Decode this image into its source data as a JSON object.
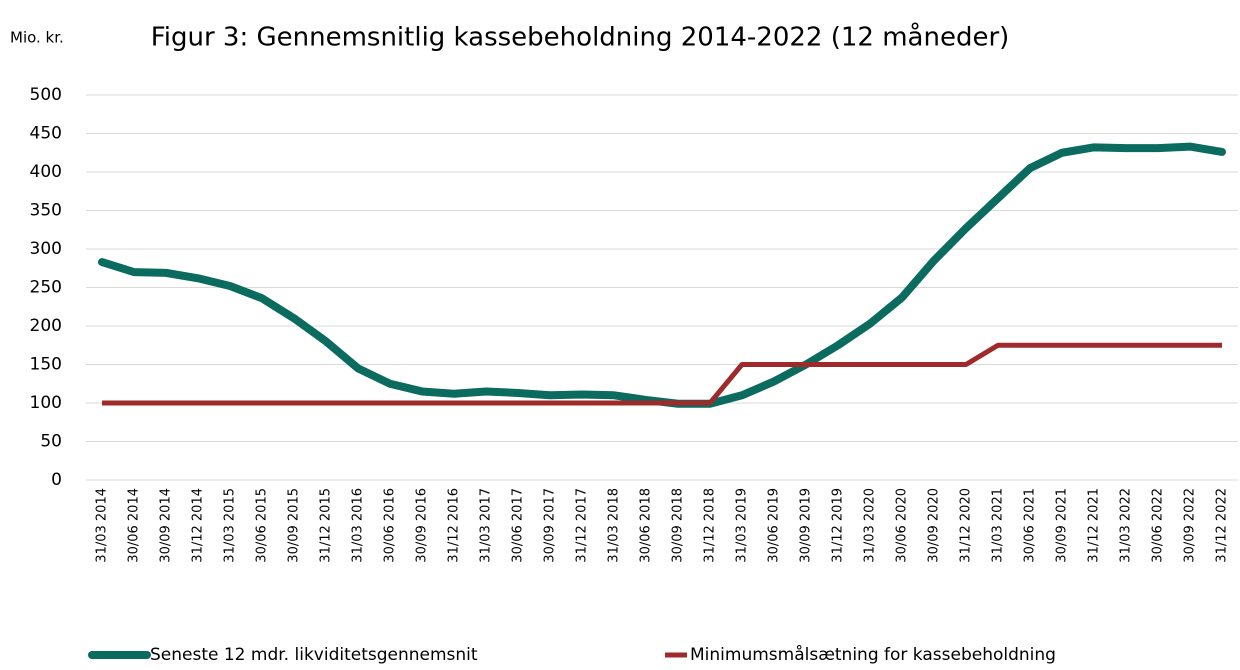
{
  "chart_data": {
    "type": "line",
    "title": "Figur 3: Gennemsnitlig kassebeholdning 2014-2022 (12 måneder)",
    "ylabel": "Mio. kr.",
    "categories": [
      "31/03 2014",
      "30/06 2014",
      "30/09 2014",
      "31/12 2014",
      "31/03 2015",
      "30/06 2015",
      "30/09 2015",
      "31/12 2015",
      "31/03 2016",
      "30/06 2016",
      "30/09 2016",
      "31/12 2016",
      "31/03 2017",
      "30/06 2017",
      "30/09 2017",
      "31/12 2017",
      "31/03 2018",
      "30/06 2018",
      "30/09 2018",
      "31/12 2018",
      "31/03 2019",
      "30/06 2019",
      "30/09 2019",
      "31/12 2019",
      "31/03 2020",
      "30/06 2020",
      "30/09 2020",
      "31/12 2020",
      "31/03 2021",
      "30/06 2021",
      "30/09 2021",
      "31/12 2021",
      "31/03 2022",
      "30/06 2022",
      "30/09 2022",
      "31/12 2022"
    ],
    "series": [
      {
        "name": "Seneste 12 mdr. likviditetsgennemsnit",
        "color": "#0b6b5e",
        "values": [
          283,
          270,
          269,
          262,
          252,
          236,
          210,
          180,
          145,
          125,
          115,
          112,
          115,
          113,
          110,
          111,
          110,
          104,
          99,
          99,
          110,
          128,
          150,
          175,
          203,
          237,
          285,
          327,
          366,
          405,
          425,
          432,
          431,
          431,
          433,
          426
        ]
      },
      {
        "name": "Minimumsmålsætning for kassebeholdning",
        "color": "#9e2a2b",
        "values": [
          100,
          100,
          100,
          100,
          100,
          100,
          100,
          100,
          100,
          100,
          100,
          100,
          100,
          100,
          100,
          100,
          100,
          100,
          100,
          100,
          150,
          150,
          150,
          150,
          150,
          150,
          150,
          150,
          175,
          175,
          175,
          175,
          175,
          175,
          175,
          175
        ]
      }
    ],
    "ylim": [
      0,
      500
    ],
    "yticks": [
      0,
      50,
      100,
      150,
      200,
      250,
      300,
      350,
      400,
      450,
      500
    ],
    "grid": true
  }
}
